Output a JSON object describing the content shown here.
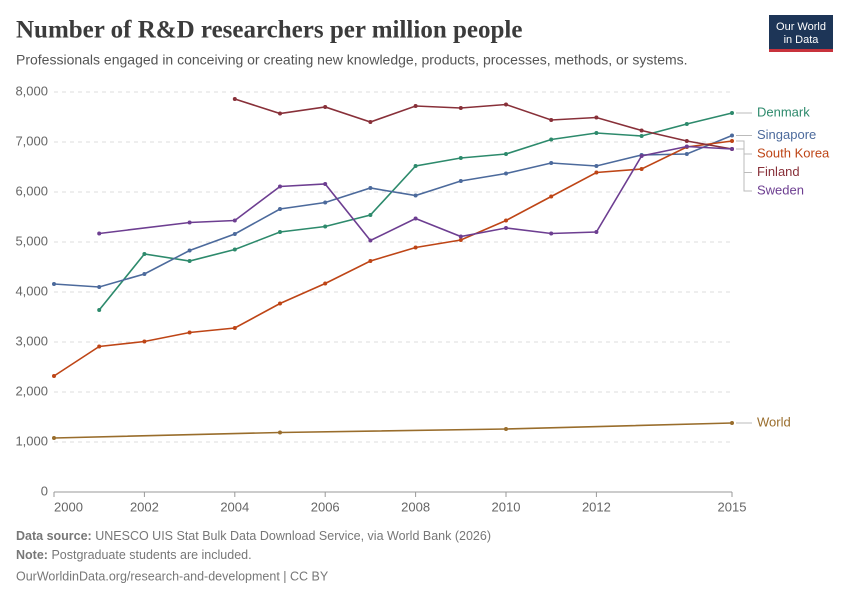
{
  "header": {
    "title": "Number of R&D researchers per million people",
    "subtitle": "Professionals engaged in conceiving or creating new knowledge, products, processes, methods, or systems.",
    "logo": [
      "Our World",
      "in Data"
    ]
  },
  "chart_data": {
    "type": "line",
    "xlim": [
      2000,
      2015
    ],
    "xticks": [
      2000,
      2002,
      2004,
      2006,
      2008,
      2010,
      2012,
      2015
    ],
    "ylim": [
      0,
      8000
    ],
    "yticks": [
      0,
      {
        "value": 1000,
        "label": "1,000"
      },
      {
        "value": 2000,
        "label": "2,000"
      },
      {
        "value": 3000,
        "label": "3,000"
      },
      {
        "value": 4000,
        "label": "4,000"
      },
      {
        "value": 5000,
        "label": "5,000"
      },
      {
        "value": 6000,
        "label": "6,000"
      },
      {
        "value": 7000,
        "label": "7,000"
      },
      {
        "value": 8000,
        "label": "8,000"
      }
    ],
    "grid": true,
    "series": [
      {
        "name": "Denmark",
        "color": "#2d8a6c",
        "x": [
          2001,
          2002,
          2003,
          2004,
          2005,
          2006,
          2007,
          2008,
          2009,
          2010,
          2011,
          2012,
          2013,
          2014,
          2015
        ],
        "values": [
          3640,
          4760,
          4620,
          4850,
          5200,
          5310,
          5540,
          6520,
          6680,
          6760,
          7050,
          7180,
          7120,
          7360,
          7580
        ]
      },
      {
        "name": "Singapore",
        "color": "#4c6a9c",
        "x": [
          2000,
          2001,
          2002,
          2003,
          2004,
          2005,
          2006,
          2007,
          2008,
          2009,
          2010,
          2011,
          2012,
          2013,
          2014,
          2015
        ],
        "values": [
          4160,
          4100,
          4360,
          4830,
          5160,
          5660,
          5790,
          6080,
          5930,
          6220,
          6370,
          6580,
          6520,
          6740,
          6760,
          7130
        ]
      },
      {
        "name": "South Korea",
        "color": "#be4516",
        "x": [
          2000,
          2001,
          2002,
          2003,
          2004,
          2005,
          2006,
          2007,
          2008,
          2009,
          2010,
          2011,
          2012,
          2013,
          2014,
          2015
        ],
        "values": [
          2320,
          2910,
          3010,
          3190,
          3280,
          3770,
          4170,
          4620,
          4890,
          5040,
          5430,
          5910,
          6390,
          6460,
          6900,
          7020
        ]
      },
      {
        "name": "Finland",
        "color": "#883039",
        "x": [
          2004,
          2005,
          2006,
          2007,
          2008,
          2009,
          2010,
          2011,
          2012,
          2013,
          2014,
          2015
        ],
        "values": [
          7860,
          7570,
          7700,
          7400,
          7720,
          7680,
          7750,
          7440,
          7490,
          7230,
          7020,
          6860
        ]
      },
      {
        "name": "Sweden",
        "color": "#6d3e91",
        "x": [
          2001,
          2003,
          2004,
          2005,
          2006,
          2007,
          2008,
          2009,
          2010,
          2011,
          2012,
          2013,
          2014,
          2015
        ],
        "values": [
          5170,
          5390,
          5430,
          6110,
          6160,
          5030,
          5470,
          5110,
          5280,
          5170,
          5200,
          6720,
          6910,
          6860
        ]
      },
      {
        "name": "World",
        "color": "#996d2c",
        "x": [
          2000,
          2005,
          2010,
          2015
        ],
        "values": [
          1080,
          1190,
          1260,
          1380
        ]
      }
    ]
  },
  "footer": {
    "source_label": "Data source:",
    "source": "UNESCO UIS Stat Bulk Data Download Service, via World Bank (2026)",
    "note_label": "Note:",
    "note": "Postgraduate students are included.",
    "url": "OurWorldinData.org/research-and-development | CC BY"
  }
}
